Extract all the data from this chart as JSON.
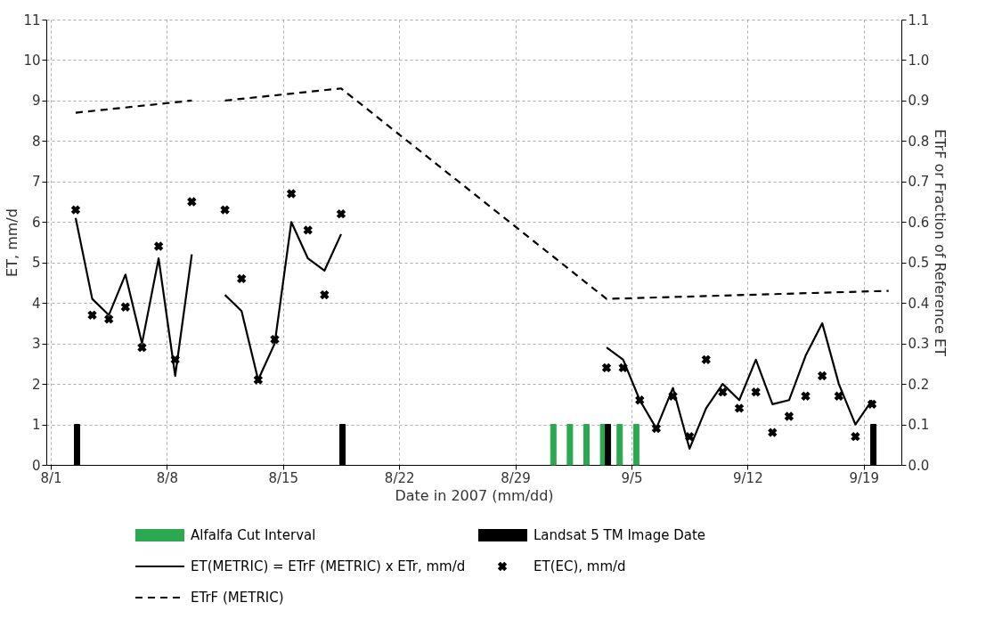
{
  "chart_data": {
    "type": "line",
    "xlabel": "Date in 2007 (mm/dd)",
    "ylabel": "ET, mm/d",
    "y2label": "ETrF or Fraction of Reference ET",
    "xlim": [
      "2007-08-01",
      "2007-09-21"
    ],
    "xticks": [
      {
        "value": "2007-08-01",
        "label": "8/1"
      },
      {
        "value": "2007-08-08",
        "label": "8/8"
      },
      {
        "value": "2007-08-15",
        "label": "8/15"
      },
      {
        "value": "2007-08-22",
        "label": "8/22"
      },
      {
        "value": "2007-08-29",
        "label": "8/29"
      },
      {
        "value": "2007-09-05",
        "label": "9/5"
      },
      {
        "value": "2007-09-12",
        "label": "9/12"
      },
      {
        "value": "2007-09-19",
        "label": "9/19"
      }
    ],
    "ylim": [
      0,
      11
    ],
    "yticks": [
      0,
      1,
      2,
      3,
      4,
      5,
      6,
      7,
      8,
      9,
      10,
      11
    ],
    "y2lim": [
      0,
      1.1
    ],
    "y2ticks": [
      {
        "value": 0,
        "label": "0.0"
      },
      0.1,
      0.2,
      0.3,
      0.4,
      0.5,
      0.6,
      0.7,
      0.8,
      0.9,
      {
        "value": 1,
        "label": "1.0"
      },
      1.1
    ],
    "grid": true,
    "legend": "bottom",
    "series": [
      {
        "name": "Alfalfa Cut Interval",
        "type": "bar",
        "color": "#2ca850",
        "x": [
          "2007-08-31T07:00",
          "2007-09-01T07:00",
          "2007-09-02T07:00",
          "2007-09-03T07:00",
          "2007-09-04T07:00",
          "2007-09-05T07:00"
        ],
        "values": [
          1,
          1,
          1,
          1,
          1,
          1
        ]
      },
      {
        "name": "Landsat 5 TM Image Date",
        "type": "bar",
        "color": "#000000",
        "x": [
          "2007-08-02T14:00",
          "2007-08-18T14:00",
          "2007-09-03T14:00",
          "2007-09-19T14:00"
        ],
        "values": [
          1,
          1,
          1,
          1
        ]
      },
      {
        "name": "ET(METRIC) = ETrF (METRIC) x ETr, mm/d",
        "color": "#000000",
        "line_style": "solid",
        "x": [
          "2007-08-02T12:00",
          "2007-08-03T12:00",
          "2007-08-04T12:00",
          "2007-08-05T12:00",
          "2007-08-06T12:00",
          "2007-08-07T12:00",
          "2007-08-08T12:00",
          "2007-08-09T12:00",
          "2007-08-10T12:00",
          "2007-08-11T12:00",
          "2007-08-12T12:00",
          "2007-08-13T12:00",
          "2007-08-14T12:00",
          "2007-08-15T12:00",
          "2007-08-16T12:00",
          "2007-08-17T12:00",
          "2007-08-18T12:00",
          "2007-08-19T12:00",
          "2007-09-03T12:00",
          "2007-09-04T12:00",
          "2007-09-05T12:00",
          "2007-09-06T12:00",
          "2007-09-07T12:00",
          "2007-09-08T12:00",
          "2007-09-09T12:00",
          "2007-09-10T12:00",
          "2007-09-11T12:00",
          "2007-09-12T12:00",
          "2007-09-13T12:00",
          "2007-09-14T12:00",
          "2007-09-15T12:00",
          "2007-09-16T12:00",
          "2007-09-17T12:00",
          "2007-09-18T12:00",
          "2007-09-19T12:00"
        ],
        "values": [
          6.1,
          4.1,
          3.7,
          4.7,
          3.0,
          5.1,
          2.2,
          5.2,
          null,
          4.2,
          3.8,
          2.1,
          3.0,
          6.0,
          5.1,
          4.8,
          5.7,
          null,
          2.9,
          2.6,
          1.6,
          0.9,
          1.9,
          0.4,
          1.4,
          2.0,
          1.6,
          2.6,
          1.5,
          1.6,
          2.7,
          3.5,
          2.0,
          1.0,
          1.6
        ]
      },
      {
        "name": "ET(EC),  mm/d",
        "type": "scatter",
        "color": "#000000",
        "marker": "cross",
        "x": [
          "2007-08-02T12:00",
          "2007-08-03T12:00",
          "2007-08-04T12:00",
          "2007-08-05T12:00",
          "2007-08-06T12:00",
          "2007-08-07T12:00",
          "2007-08-08T12:00",
          "2007-08-09T12:00",
          "2007-08-11T12:00",
          "2007-08-12T12:00",
          "2007-08-13T12:00",
          "2007-08-14T12:00",
          "2007-08-15T12:00",
          "2007-08-16T12:00",
          "2007-08-17T12:00",
          "2007-08-18T12:00",
          "2007-09-03T12:00",
          "2007-09-04T12:00",
          "2007-09-05T12:00",
          "2007-09-06T12:00",
          "2007-09-07T12:00",
          "2007-09-08T12:00",
          "2007-09-09T12:00",
          "2007-09-10T12:00",
          "2007-09-11T12:00",
          "2007-09-12T12:00",
          "2007-09-13T12:00",
          "2007-09-14T12:00",
          "2007-09-15T12:00",
          "2007-09-16T12:00",
          "2007-09-17T12:00",
          "2007-09-18T12:00",
          "2007-09-19T12:00"
        ],
        "values": [
          6.3,
          3.7,
          3.6,
          3.9,
          2.9,
          5.4,
          2.6,
          6.5,
          6.3,
          4.6,
          2.1,
          3.1,
          6.7,
          5.8,
          4.2,
          6.2,
          2.4,
          2.4,
          1.6,
          0.9,
          1.7,
          0.7,
          2.6,
          1.8,
          1.4,
          1.8,
          0.8,
          1.2,
          1.7,
          2.2,
          1.7,
          0.7,
          1.5
        ]
      },
      {
        "name": "ETrF (METRIC)",
        "axis": "y2",
        "color": "#000000",
        "line_style": "dashed",
        "x": [
          "2007-08-02T12:00",
          "2007-08-09T12:00",
          "2007-08-10T12:00",
          "2007-08-11T12:00",
          "2007-08-18T12:00",
          "2007-09-03T12:00",
          "2007-09-20T12:00"
        ],
        "values": [
          0.87,
          0.9,
          null,
          0.9,
          0.93,
          0.41,
          0.43
        ]
      }
    ]
  }
}
